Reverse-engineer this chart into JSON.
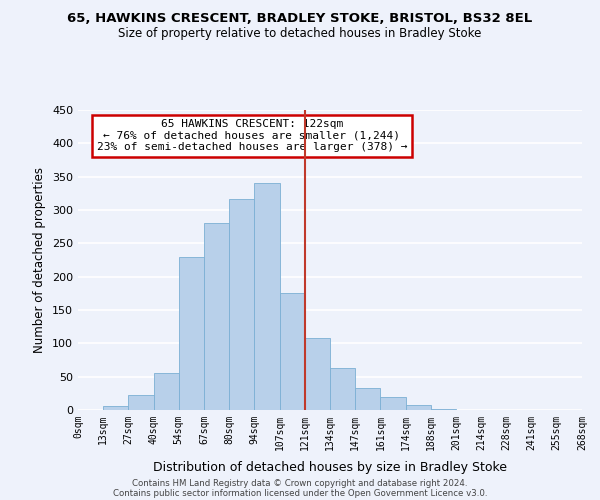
{
  "title1": "65, HAWKINS CRESCENT, BRADLEY STOKE, BRISTOL, BS32 8EL",
  "title2": "Size of property relative to detached houses in Bradley Stoke",
  "xlabel": "Distribution of detached houses by size in Bradley Stoke",
  "ylabel": "Number of detached properties",
  "bin_labels": [
    "0sqm",
    "13sqm",
    "27sqm",
    "40sqm",
    "54sqm",
    "67sqm",
    "80sqm",
    "94sqm",
    "107sqm",
    "121sqm",
    "134sqm",
    "147sqm",
    "161sqm",
    "174sqm",
    "188sqm",
    "201sqm",
    "214sqm",
    "228sqm",
    "241sqm",
    "255sqm",
    "268sqm"
  ],
  "bar_heights": [
    0,
    6,
    22,
    55,
    230,
    280,
    317,
    340,
    175,
    108,
    63,
    33,
    19,
    7,
    2,
    0,
    0,
    0,
    0,
    0
  ],
  "bar_color": "#b8d0ea",
  "bar_edge_color": "#7bafd4",
  "vline_color": "#c0392b",
  "annotation_title": "65 HAWKINS CRESCENT: 122sqm",
  "annotation_line1": "← 76% of detached houses are smaller (1,244)",
  "annotation_line2": "23% of semi-detached houses are larger (378) →",
  "annotation_box_facecolor": "#ffffff",
  "annotation_box_edgecolor": "#cc0000",
  "ylim": [
    0,
    450
  ],
  "yticks": [
    0,
    50,
    100,
    150,
    200,
    250,
    300,
    350,
    400,
    450
  ],
  "footer1": "Contains HM Land Registry data © Crown copyright and database right 2024.",
  "footer2": "Contains public sector information licensed under the Open Government Licence v3.0.",
  "background_color": "#eef2fb"
}
